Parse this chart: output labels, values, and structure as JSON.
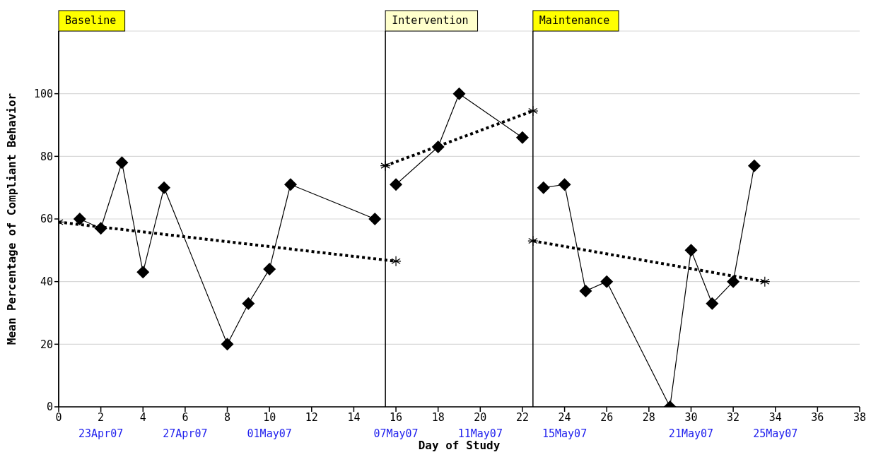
{
  "chart_data": {
    "type": "line",
    "xlabel": "Day of Study",
    "ylabel": "Mean Percentage of Compliant Behavior",
    "xlim": [
      0,
      38
    ],
    "xticks": [
      0,
      2,
      4,
      6,
      8,
      10,
      12,
      14,
      16,
      18,
      20,
      22,
      24,
      26,
      28,
      30,
      32,
      34,
      36,
      38
    ],
    "ylim": [
      0,
      120
    ],
    "yticks": [
      0,
      20,
      40,
      60,
      80,
      100
    ],
    "grid": "y",
    "series": [
      {
        "color": "#000000",
        "marker": "diamond",
        "line_style": "solid",
        "x": [
          1,
          2,
          3,
          4,
          5,
          8,
          9,
          10,
          11,
          15
        ],
        "values": [
          60,
          57,
          78,
          43,
          70,
          20,
          33,
          44,
          71,
          60
        ]
      },
      {
        "color": "#000000",
        "marker": "diamond",
        "line_style": "solid",
        "x": [
          16,
          18,
          19,
          22
        ],
        "values": [
          71,
          83,
          100,
          86
        ]
      },
      {
        "color": "#000000",
        "marker": "diamond",
        "line_style": "solid",
        "x": [
          23,
          24,
          25,
          26,
          29,
          30,
          31,
          32,
          33
        ],
        "values": [
          70,
          71,
          37,
          40,
          0,
          50,
          33,
          40,
          77
        ]
      },
      {
        "color": "#000000",
        "marker": "cross",
        "line_style": "dotted",
        "x": [
          0,
          16
        ],
        "values": [
          59,
          46.5
        ]
      },
      {
        "color": "#000000",
        "marker": "cross",
        "line_style": "dotted",
        "x": [
          15.5,
          22.5
        ],
        "values": [
          77,
          94.5
        ]
      },
      {
        "color": "#000000",
        "marker": "cross",
        "line_style": "dotted",
        "x": [
          22.5,
          33.5
        ],
        "values": [
          53,
          40
        ]
      }
    ],
    "ref_lines": [
      {
        "axis": "x",
        "value": 0,
        "label": "Baseline",
        "color": "#000000"
      },
      {
        "axis": "x",
        "value": 15.5,
        "label": "Intervention",
        "color": "#000000"
      },
      {
        "axis": "x",
        "value": 22.5,
        "label": "Maintenance",
        "color": "#000000"
      }
    ],
    "x2lim": [
      "--04-21",
      "--05-29"
    ],
    "x2ticks": [
      {
        "value": "--04-23",
        "label": "23Apr07"
      },
      {
        "value": "--04-27",
        "label": "27Apr07"
      },
      {
        "value": "--05-01",
        "label": "01May07"
      },
      {
        "value": "--05-07",
        "label": "07May07"
      },
      {
        "value": "--05-11",
        "label": "11May07"
      },
      {
        "value": "--05-15",
        "label": "15May07"
      },
      {
        "value": "--05-21",
        "label": "21May07"
      },
      {
        "value": "--05-25",
        "label": "25May07"
      }
    ]
  }
}
